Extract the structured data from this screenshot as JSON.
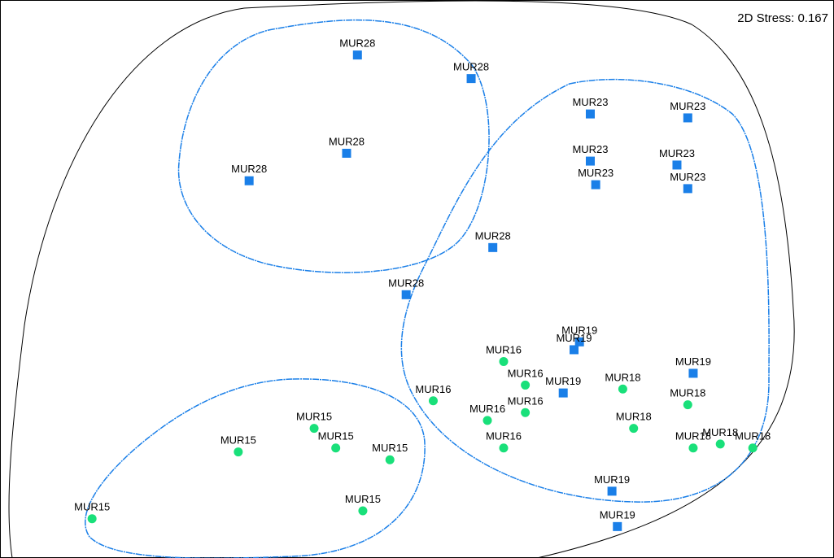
{
  "chart_data": {
    "type": "scatter",
    "stress_label": "2D Stress: 0.167",
    "colors": {
      "square": "#1a7fe8",
      "circle": "#19e07a",
      "cluster_line": "#1a7fe8",
      "outer_line": "#000000"
    },
    "series": [
      {
        "marker": "square",
        "points": [
          {
            "label": "MUR28",
            "x": -0.52,
            "y": 1.28
          },
          {
            "label": "MUR28",
            "x": -0.31,
            "y": 1.22
          },
          {
            "label": "MUR28",
            "x": -0.54,
            "y": 1.03
          },
          {
            "label": "MUR28",
            "x": -0.72,
            "y": 0.96
          },
          {
            "label": "MUR28",
            "x": -0.27,
            "y": 0.79
          },
          {
            "label": "MUR28",
            "x": -0.43,
            "y": 0.67
          },
          {
            "label": "MUR23",
            "x": -0.09,
            "y": 1.13
          },
          {
            "label": "MUR23",
            "x": 0.09,
            "y": 1.12
          },
          {
            "label": "MUR23",
            "x": -0.09,
            "y": 1.01
          },
          {
            "label": "MUR23",
            "x": 0.07,
            "y": 1.0
          },
          {
            "label": "MUR23",
            "x": -0.08,
            "y": 0.95
          },
          {
            "label": "MUR23",
            "x": 0.09,
            "y": 0.94
          },
          {
            "label": "MUR19",
            "x": -0.11,
            "y": 0.55
          },
          {
            "label": "MUR19",
            "x": -0.12,
            "y": 0.53
          },
          {
            "label": "MUR19",
            "x": 0.1,
            "y": 0.47
          },
          {
            "label": "MUR19",
            "x": -0.14,
            "y": 0.42
          },
          {
            "label": "MUR19",
            "x": -0.05,
            "y": 0.17
          },
          {
            "label": "MUR19",
            "x": -0.04,
            "y": 0.08
          }
        ]
      },
      {
        "marker": "circle",
        "points": [
          {
            "label": "MUR16",
            "x": -0.25,
            "y": 0.5
          },
          {
            "label": "MUR16",
            "x": -0.21,
            "y": 0.44
          },
          {
            "label": "MUR16",
            "x": -0.38,
            "y": 0.4
          },
          {
            "label": "MUR16",
            "x": -0.21,
            "y": 0.37
          },
          {
            "label": "MUR16",
            "x": -0.28,
            "y": 0.35
          },
          {
            "label": "MUR16",
            "x": -0.25,
            "y": 0.28
          },
          {
            "label": "MUR18",
            "x": -0.03,
            "y": 0.43
          },
          {
            "label": "MUR18",
            "x": 0.09,
            "y": 0.39
          },
          {
            "label": "MUR18",
            "x": -0.01,
            "y": 0.33
          },
          {
            "label": "MUR18",
            "x": 0.1,
            "y": 0.28
          },
          {
            "label": "MUR18",
            "x": 0.15,
            "y": 0.29
          },
          {
            "label": "MUR18",
            "x": 0.21,
            "y": 0.28
          },
          {
            "label": "MUR15",
            "x": -0.6,
            "y": 0.33
          },
          {
            "label": "MUR15",
            "x": -0.56,
            "y": 0.28
          },
          {
            "label": "MUR15",
            "x": -0.74,
            "y": 0.27
          },
          {
            "label": "MUR15",
            "x": -0.46,
            "y": 0.25
          },
          {
            "label": "MUR15",
            "x": -0.51,
            "y": 0.12
          },
          {
            "label": "MUR15",
            "x": -1.01,
            "y": 0.1
          }
        ]
      }
    ],
    "xlim": [
      -1.18,
      0.36
    ],
    "ylim": [
      0.0,
      1.42
    ],
    "grid": false
  }
}
